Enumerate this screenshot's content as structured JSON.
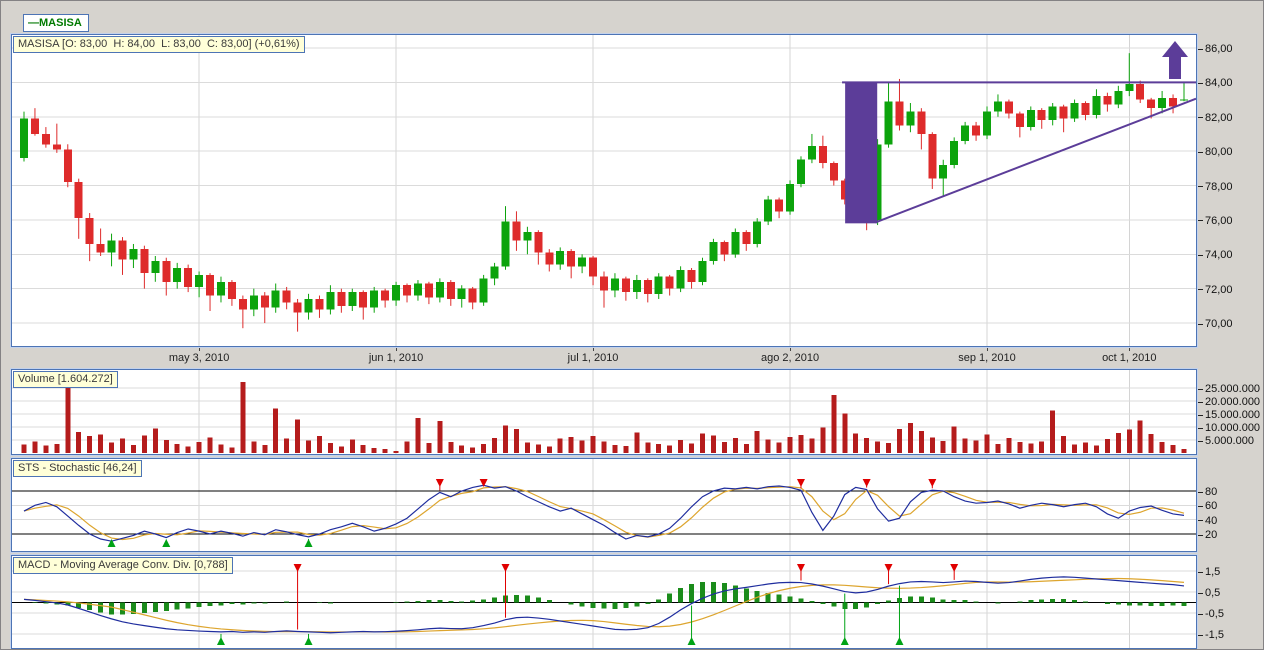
{
  "legend": {
    "dash": "—",
    "symbol": "MASISA"
  },
  "panels": {
    "price": {
      "label": "MASISA [O: 83,00  H: 84,00  L: 83,00  C: 83,00] (+0,61%)"
    },
    "volume": {
      "label": "Volume [1.604.272]"
    },
    "stochastic": {
      "label": "STS - Stochastic [46,24]"
    },
    "macd": {
      "label": "MACD - Moving Average Conv. Div. [0,788]"
    }
  },
  "colors": {
    "up": "#0CA30C",
    "down": "#DE2B2B",
    "volume_bar": "#B51C1C",
    "indicator_line": "#1F2D9E",
    "signal_line": "#DDA52E",
    "histogram": "#1B8C1B",
    "annotation_purple": "#5C3D99",
    "buy_marker": "#00A316",
    "sell_marker": "#E00000",
    "grid": "#DBDBDB",
    "grid_vertical": "#D4D4D4",
    "band_line": "#000000"
  },
  "axes": {
    "dates": [
      {
        "label": "may 3, 2010",
        "day": 16
      },
      {
        "label": "jun 1, 2010",
        "day": 34
      },
      {
        "label": "jul 1, 2010",
        "day": 52
      },
      {
        "label": "ago 2, 2010",
        "day": 70
      },
      {
        "label": "sep 1, 2010",
        "day": 88
      },
      {
        "label": "oct 1, 2010",
        "day": 101
      }
    ],
    "price_ticks": [
      {
        "label": "86,00",
        "value": 86
      },
      {
        "label": "84,00",
        "value": 84
      },
      {
        "label": "82,00",
        "value": 82
      },
      {
        "label": "80,00",
        "value": 80
      },
      {
        "label": "78,00",
        "value": 78
      },
      {
        "label": "76,00",
        "value": 76
      },
      {
        "label": "74,00",
        "value": 74
      },
      {
        "label": "72,00",
        "value": 72
      },
      {
        "label": "70,00",
        "value": 70
      }
    ],
    "volume_ticks": [
      {
        "label": "25.000.000",
        "value": 25
      },
      {
        "label": "20.000.000",
        "value": 20
      },
      {
        "label": "15.000.000",
        "value": 15
      },
      {
        "label": "10.000.000",
        "value": 10
      },
      {
        "label": "5.000.000",
        "value": 5
      }
    ],
    "stoch_ticks": [
      {
        "label": "80",
        "value": 80
      },
      {
        "label": "60",
        "value": 60
      },
      {
        "label": "40",
        "value": 40
      },
      {
        "label": "20",
        "value": 20
      }
    ],
    "macd_ticks": [
      {
        "label": "1,5",
        "value": 1.5
      },
      {
        "label": "0,5",
        "value": 0.5
      },
      {
        "label": "-0,5",
        "value": -0.5
      },
      {
        "label": "-1,5",
        "value": -1.5
      }
    ]
  },
  "chart_data": [
    {
      "type": "candlestick",
      "title": "MASISA daily price",
      "ylim": [
        68.5,
        87
      ],
      "last_ohlc": {
        "open": "83,00",
        "high": "84,00",
        "low": "83,00",
        "close": "83,00",
        "change_pct": "+0,61%"
      },
      "candles": [
        [
          79.6,
          82.3,
          79.4,
          81.9
        ],
        [
          81.9,
          82.5,
          80.9,
          81.0
        ],
        [
          81.0,
          81.4,
          80.2,
          80.4
        ],
        [
          80.4,
          81.6,
          79.9,
          80.1
        ],
        [
          80.1,
          80.4,
          77.9,
          78.2
        ],
        [
          78.2,
          78.4,
          74.9,
          76.1
        ],
        [
          76.1,
          76.4,
          73.6,
          74.6
        ],
        [
          74.6,
          75.5,
          73.9,
          74.1
        ],
        [
          74.1,
          75.2,
          73.3,
          74.8
        ],
        [
          74.8,
          75.0,
          72.8,
          73.7
        ],
        [
          73.7,
          74.6,
          73.2,
          74.3
        ],
        [
          74.3,
          74.5,
          72.0,
          72.9
        ],
        [
          72.9,
          73.9,
          72.4,
          73.6
        ],
        [
          73.6,
          73.8,
          71.6,
          72.4
        ],
        [
          72.4,
          73.5,
          72.0,
          73.2
        ],
        [
          73.2,
          73.4,
          71.8,
          72.1
        ],
        [
          72.1,
          73.0,
          71.5,
          72.8
        ],
        [
          72.8,
          72.9,
          70.7,
          71.6
        ],
        [
          71.6,
          72.7,
          71.2,
          72.4
        ],
        [
          72.4,
          72.5,
          71.0,
          71.4
        ],
        [
          71.4,
          71.6,
          69.7,
          70.8
        ],
        [
          70.8,
          72.0,
          70.4,
          71.6
        ],
        [
          71.6,
          71.8,
          70.0,
          70.9
        ],
        [
          70.9,
          72.3,
          70.6,
          71.9
        ],
        [
          71.9,
          72.1,
          70.8,
          71.2
        ],
        [
          71.2,
          71.4,
          69.5,
          70.6
        ],
        [
          70.6,
          71.7,
          70.2,
          71.4
        ],
        [
          71.4,
          71.6,
          70.3,
          70.8
        ],
        [
          70.8,
          72.2,
          70.5,
          71.8
        ],
        [
          71.8,
          72.0,
          70.6,
          71.0
        ],
        [
          71.0,
          72.0,
          70.7,
          71.8
        ],
        [
          71.8,
          71.9,
          70.2,
          70.9
        ],
        [
          70.9,
          72.1,
          70.6,
          71.9
        ],
        [
          71.9,
          72.0,
          70.9,
          71.3
        ],
        [
          71.3,
          72.4,
          71.0,
          72.2
        ],
        [
          72.2,
          72.3,
          71.2,
          71.6
        ],
        [
          71.6,
          72.5,
          71.3,
          72.3
        ],
        [
          72.3,
          72.4,
          71.1,
          71.5
        ],
        [
          71.5,
          72.6,
          71.2,
          72.4
        ],
        [
          72.4,
          72.5,
          71.0,
          71.4
        ],
        [
          71.4,
          72.2,
          70.9,
          72.0
        ],
        [
          72.0,
          72.1,
          70.8,
          71.2
        ],
        [
          71.2,
          72.8,
          71.0,
          72.6
        ],
        [
          72.6,
          73.5,
          72.2,
          73.3
        ],
        [
          73.3,
          76.8,
          73.1,
          75.9
        ],
        [
          75.9,
          76.5,
          74.2,
          74.8
        ],
        [
          74.8,
          75.6,
          74.0,
          75.3
        ],
        [
          75.3,
          75.4,
          73.4,
          74.1
        ],
        [
          74.1,
          74.3,
          73.0,
          73.4
        ],
        [
          73.4,
          74.4,
          73.1,
          74.2
        ],
        [
          74.2,
          74.3,
          72.6,
          73.3
        ],
        [
          73.3,
          74.0,
          72.9,
          73.8
        ],
        [
          73.8,
          73.9,
          72.2,
          72.7
        ],
        [
          72.7,
          73.0,
          70.9,
          71.9
        ],
        [
          71.9,
          72.9,
          71.5,
          72.6
        ],
        [
          72.6,
          72.7,
          71.3,
          71.8
        ],
        [
          71.8,
          72.8,
          71.4,
          72.5
        ],
        [
          72.5,
          72.6,
          71.2,
          71.7
        ],
        [
          71.7,
          72.9,
          71.4,
          72.7
        ],
        [
          72.7,
          72.8,
          71.6,
          72.0
        ],
        [
          72.0,
          73.3,
          71.8,
          73.1
        ],
        [
          73.1,
          73.2,
          72.0,
          72.4
        ],
        [
          72.4,
          73.8,
          72.2,
          73.6
        ],
        [
          73.6,
          74.9,
          73.4,
          74.7
        ],
        [
          74.7,
          74.8,
          73.6,
          74.0
        ],
        [
          74.0,
          75.5,
          73.8,
          75.3
        ],
        [
          75.3,
          75.4,
          74.2,
          74.6
        ],
        [
          74.6,
          76.1,
          74.4,
          75.9
        ],
        [
          75.9,
          77.4,
          75.7,
          77.2
        ],
        [
          77.2,
          77.3,
          76.1,
          76.5
        ],
        [
          76.5,
          78.3,
          76.3,
          78.1
        ],
        [
          78.1,
          79.7,
          77.9,
          79.5
        ],
        [
          79.5,
          81.0,
          79.3,
          80.3
        ],
        [
          80.3,
          80.9,
          79.0,
          79.3
        ],
        [
          79.3,
          79.4,
          78.0,
          78.3
        ],
        [
          78.3,
          78.4,
          76.9,
          77.2
        ],
        [
          77.2,
          77.3,
          75.9,
          76.2
        ],
        [
          76.2,
          76.9,
          75.4,
          76.0
        ],
        [
          76.0,
          80.7,
          75.7,
          80.4
        ],
        [
          80.4,
          84.0,
          80.2,
          82.9
        ],
        [
          82.9,
          84.2,
          81.2,
          81.5
        ],
        [
          81.5,
          82.8,
          81.1,
          82.3
        ],
        [
          82.3,
          82.5,
          80.1,
          81.0
        ],
        [
          81.0,
          81.1,
          77.8,
          78.4
        ],
        [
          78.4,
          79.5,
          77.4,
          79.2
        ],
        [
          79.2,
          80.8,
          79.0,
          80.6
        ],
        [
          80.6,
          81.7,
          80.4,
          81.5
        ],
        [
          81.5,
          81.7,
          80.6,
          80.9
        ],
        [
          80.9,
          82.6,
          80.7,
          82.3
        ],
        [
          82.3,
          83.3,
          82.0,
          82.9
        ],
        [
          82.9,
          83.0,
          81.9,
          82.2
        ],
        [
          82.2,
          82.3,
          80.8,
          81.4
        ],
        [
          81.4,
          82.6,
          81.2,
          82.4
        ],
        [
          82.4,
          82.5,
          81.3,
          81.8
        ],
        [
          81.8,
          82.8,
          81.5,
          82.6
        ],
        [
          82.6,
          82.7,
          81.1,
          81.9
        ],
        [
          81.9,
          83.0,
          81.7,
          82.8
        ],
        [
          82.8,
          82.9,
          81.8,
          82.1
        ],
        [
          82.1,
          83.6,
          81.9,
          83.2
        ],
        [
          83.2,
          83.4,
          82.3,
          82.7
        ],
        [
          82.7,
          83.8,
          82.5,
          83.5
        ],
        [
          83.5,
          85.7,
          83.2,
          83.9
        ],
        [
          83.9,
          84.1,
          82.8,
          83.0
        ],
        [
          83.0,
          83.1,
          81.9,
          82.5
        ],
        [
          82.5,
          83.5,
          82.2,
          83.1
        ],
        [
          83.1,
          83.3,
          82.2,
          82.6
        ],
        [
          83.0,
          84.0,
          82.9,
          83.0
        ]
      ],
      "annotations": {
        "consolidation_rectangle": {
          "day_start": 75.4,
          "day_end": 77.6,
          "price_top": 84.05,
          "price_bottom": 75.8
        },
        "resistance_line": {
          "price": 84.0,
          "day_start": 75.3,
          "to_right_edge": true
        },
        "ascending_trend_line": {
          "day_start": 77.8,
          "price_start": 75.85,
          "price_end_at_right_edge": 83.05
        },
        "breakout_arrow_up": {
          "present": true
        }
      }
    },
    {
      "type": "bar",
      "name": "Volume",
      "last_value_label": "1.604.272",
      "ylim_millions": [
        0,
        32
      ],
      "values_millions": [
        3.2,
        4.5,
        2.8,
        3.5,
        25.2,
        8.0,
        6.5,
        7.2,
        4.0,
        5.5,
        3.0,
        6.8,
        9.5,
        5.0,
        3.5,
        2.5,
        4.2,
        6.0,
        3.2,
        2.2,
        27.3,
        4.5,
        3.0,
        17.2,
        5.5,
        12.8,
        4.8,
        6.5,
        3.8,
        2.5,
        5.2,
        3.0,
        2.0,
        1.5,
        0.8,
        4.5,
        13.5,
        3.8,
        12.4,
        4.2,
        2.8,
        2.2,
        3.5,
        5.8,
        10.5,
        9.2,
        4.0,
        3.2,
        2.5,
        5.5,
        6.2,
        4.8,
        6.5,
        4.5,
        3.0,
        2.6,
        7.8,
        4.0,
        3.4,
        2.8,
        5.0,
        3.6,
        7.5,
        6.8,
        4.2,
        5.8,
        3.5,
        8.5,
        5.2,
        4.0,
        6.2,
        7.0,
        5.5,
        9.8,
        22.4,
        15.1,
        7.5,
        5.8,
        4.5,
        3.8,
        9.2,
        11.5,
        8.4,
        6.0,
        4.6,
        10.2,
        5.5,
        4.8,
        7.2,
        3.5,
        5.8,
        4.2,
        3.6,
        4.4,
        16.3,
        6.5,
        3.2,
        4.0,
        2.8,
        5.4,
        7.6,
        9.0,
        12.5,
        7.4,
        4.2,
        3.0,
        1.6
      ]
    },
    {
      "type": "line",
      "name": "STS - Stochastic",
      "current_value": "46,24",
      "upper_band": 80,
      "lower_band": 20,
      "d_smoothing_periods": 3,
      "k_values": [
        52,
        60,
        64,
        58,
        45,
        32,
        20,
        13,
        10,
        14,
        18,
        24,
        20,
        15,
        22,
        27,
        24,
        20,
        24,
        21,
        17,
        22,
        19,
        26,
        23,
        19,
        16,
        20,
        26,
        30,
        35,
        30,
        24,
        28,
        34,
        42,
        55,
        68,
        78,
        72,
        80,
        85,
        88,
        84,
        86,
        80,
        72,
        65,
        58,
        52,
        56,
        48,
        40,
        32,
        22,
        13,
        18,
        16,
        20,
        28,
        42,
        58,
        72,
        80,
        84,
        83,
        85,
        83,
        86,
        87,
        85,
        81,
        50,
        25,
        45,
        75,
        85,
        82,
        55,
        38,
        42,
        65,
        78,
        81,
        80,
        72,
        66,
        63,
        64,
        66,
        62,
        56,
        60,
        63,
        61,
        58,
        61,
        63,
        58,
        48,
        42,
        52,
        57,
        59,
        53,
        48,
        46
      ],
      "buy_signal_days": [
        8,
        13,
        26
      ],
      "sell_signal_days": [
        38,
        42,
        71,
        77,
        83
      ]
    },
    {
      "type": "line+histogram",
      "name": "MACD",
      "current_value": "0,788",
      "signal_smoothing_periods": 9,
      "macd_values": [
        0.15,
        0.1,
        0.04,
        -0.02,
        -0.12,
        -0.28,
        -0.45,
        -0.62,
        -0.78,
        -0.92,
        -1.02,
        -1.1,
        -1.18,
        -1.25,
        -1.3,
        -1.33,
        -1.36,
        -1.38,
        -1.4,
        -1.38,
        -1.42,
        -1.4,
        -1.42,
        -1.38,
        -1.35,
        -1.38,
        -1.4,
        -1.42,
        -1.44,
        -1.42,
        -1.4,
        -1.38,
        -1.4,
        -1.39,
        -1.37,
        -1.34,
        -1.3,
        -1.25,
        -1.22,
        -1.24,
        -1.25,
        -1.2,
        -1.1,
        -0.98,
        -0.82,
        -0.72,
        -0.7,
        -0.74,
        -0.8,
        -0.88,
        -0.96,
        -1.04,
        -1.12,
        -1.2,
        -1.28,
        -1.3,
        -1.28,
        -1.2,
        -1.0,
        -0.7,
        -0.35,
        -0.05,
        0.2,
        0.4,
        0.55,
        0.65,
        0.72,
        0.8,
        0.88,
        0.94,
        0.96,
        0.95,
        0.88,
        0.78,
        0.65,
        0.52,
        0.46,
        0.5,
        0.62,
        0.78,
        0.9,
        0.98,
        1.0,
        0.98,
        0.95,
        0.98,
        1.02,
        1.0,
        0.96,
        0.92,
        0.95,
        1.02,
        1.1,
        1.16,
        1.2,
        1.22,
        1.2,
        1.16,
        1.12,
        1.08,
        1.04,
        1.0,
        0.96,
        0.92,
        0.88,
        0.85,
        0.79
      ],
      "buy_signal_days": [
        18,
        26,
        61,
        75,
        80
      ],
      "sell_signal_days": [
        25,
        44,
        71,
        79,
        85
      ]
    }
  ]
}
